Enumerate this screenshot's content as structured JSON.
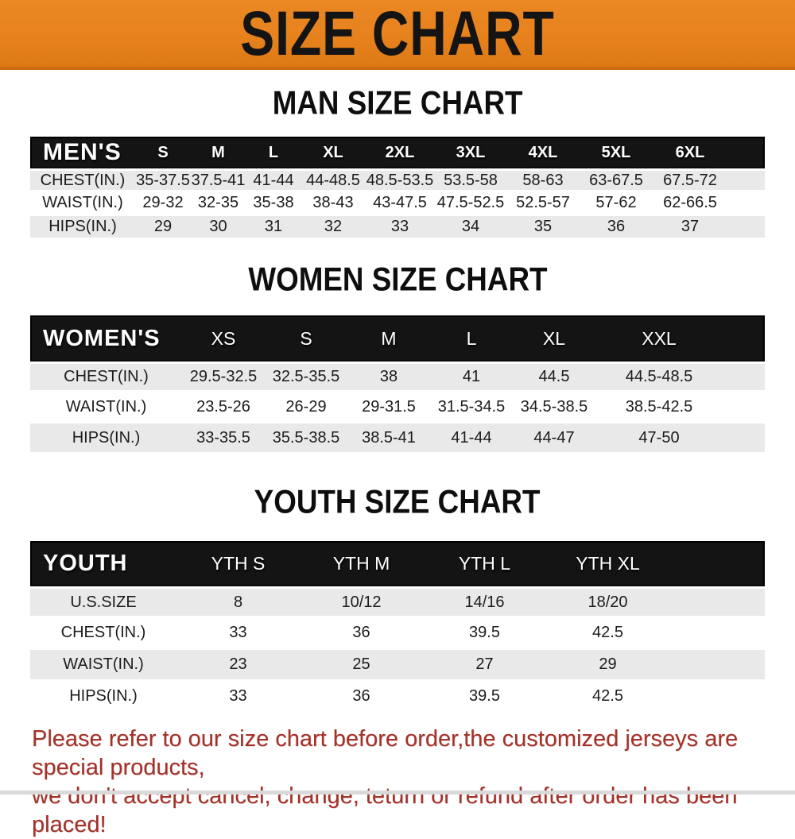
{
  "banner": {
    "title": "SIZE CHART"
  },
  "colors": {
    "banner_orange": "#e7821d",
    "table_header_black": "#151414",
    "row_gray": "#e9e9e9",
    "disclaimer_red": "#a33229"
  },
  "sections": [
    {
      "id": "men",
      "title": "MAN SIZE CHART",
      "header_label": "MEN'S",
      "columns": [
        "S",
        "M",
        "L",
        "XL",
        "2XL",
        "3XL",
        "4XL",
        "5XL",
        "6XL"
      ],
      "rows": [
        {
          "label": "CHEST(IN.)",
          "values": [
            "35-37.5",
            "37.5-41",
            "41-44",
            "44-48.5",
            "48.5-53.5",
            "53.5-58",
            "58-63",
            "63-67.5",
            "67.5-72"
          ]
        },
        {
          "label": "WAIST(IN.)",
          "values": [
            "29-32",
            "32-35",
            "35-38",
            "38-43",
            "43-47.5",
            "47.5-52.5",
            "52.5-57",
            "57-62",
            "62-66.5"
          ]
        },
        {
          "label": "HIPS(IN.)",
          "values": [
            "29",
            "30",
            "31",
            "32",
            "33",
            "34",
            "35",
            "36",
            "37"
          ]
        }
      ]
    },
    {
      "id": "women",
      "title": "WOMEN SIZE CHART",
      "header_label": "WOMEN'S",
      "columns": [
        "XS",
        "S",
        "M",
        "L",
        "XL",
        "XXL"
      ],
      "rows": [
        {
          "label": "CHEST(IN.)",
          "values": [
            "29.5-32.5",
            "32.5-35.5",
            "38",
            "41",
            "44.5",
            "44.5-48.5"
          ]
        },
        {
          "label": "WAIST(IN.)",
          "values": [
            "23.5-26",
            "26-29",
            "29-31.5",
            "31.5-34.5",
            "34.5-38.5",
            "38.5-42.5"
          ]
        },
        {
          "label": "HIPS(IN.)",
          "values": [
            "33-35.5",
            "35.5-38.5",
            "38.5-41",
            "41-44",
            "44-47",
            "47-50"
          ]
        }
      ]
    },
    {
      "id": "youth",
      "title": "YOUTH SIZE CHART",
      "header_label": "YOUTH",
      "columns": [
        "YTH S",
        "YTH M",
        "YTH L",
        "YTH XL"
      ],
      "rows": [
        {
          "label": "U.S.SIZE",
          "values": [
            "8",
            "10/12",
            "14/16",
            "18/20"
          ]
        },
        {
          "label": "CHEST(IN.)",
          "values": [
            "33",
            "36",
            "39.5",
            "42.5"
          ]
        },
        {
          "label": "WAIST(IN.)",
          "values": [
            "23",
            "25",
            "27",
            "29"
          ]
        },
        {
          "label": "HIPS(IN.)",
          "values": [
            "33",
            "36",
            "39.5",
            "42.5"
          ]
        }
      ]
    }
  ],
  "disclaimer": {
    "line1": "Please refer to our size chart before order,the customized jerseys are special products,",
    "line2": "we don't accept cancel, change, teturn or refund after order has been placed!"
  }
}
